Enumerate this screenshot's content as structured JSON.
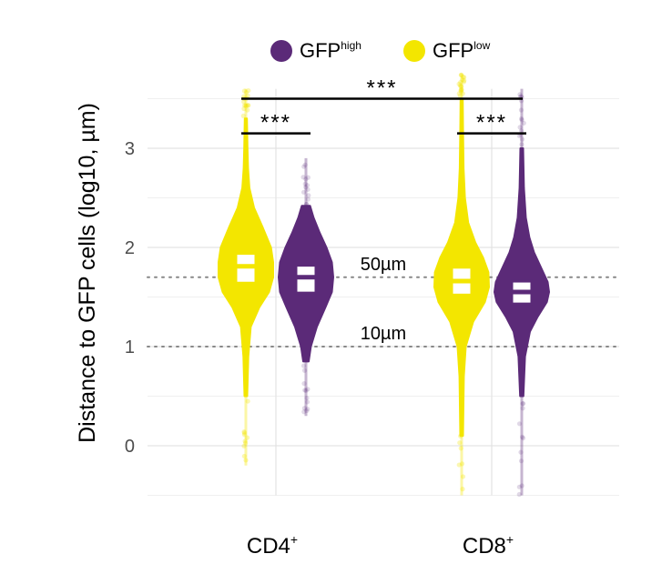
{
  "chart_data": {
    "type": "violin",
    "ylabel": "Distance to GFP cells (log10, µm)",
    "ylim": [
      -0.5,
      3.6
    ],
    "yticks": [
      "0",
      "1",
      "2",
      "3"
    ],
    "grid": true,
    "categories": [
      "CD4",
      "CD8"
    ],
    "category_superscripts": [
      "+",
      "+"
    ],
    "legend": {
      "placement": "top",
      "entries": [
        {
          "base": "GFP",
          "sup": "high",
          "color": "#5b2a78"
        },
        {
          "base": "GFP",
          "sup": "low",
          "color": "#f3e600"
        }
      ]
    },
    "reference_lines": [
      {
        "y": 1.699,
        "label": "50µm"
      },
      {
        "y": 1.0,
        "label": "10µm"
      }
    ],
    "series": [
      {
        "key": "low",
        "color": "#f3e600",
        "groups": [
          {
            "category": "CD4",
            "min": -0.2,
            "max": 3.6,
            "q1": 1.64,
            "median": 1.81,
            "q3": 1.94,
            "profile": [
              [
                0.5,
                0.05
              ],
              [
                0.9,
                0.09
              ],
              [
                1.2,
                0.18
              ],
              [
                1.4,
                0.5
              ],
              [
                1.55,
                0.85
              ],
              [
                1.7,
                1.0
              ],
              [
                1.85,
                1.0
              ],
              [
                2.0,
                0.92
              ],
              [
                2.2,
                0.62
              ],
              [
                2.4,
                0.3
              ],
              [
                2.6,
                0.13
              ],
              [
                2.8,
                0.08
              ],
              [
                3.0,
                0.06
              ],
              [
                3.3,
                0.04
              ]
            ]
          },
          {
            "category": "CD8",
            "min": -0.5,
            "max": 3.75,
            "q1": 1.52,
            "median": 1.66,
            "q3": 1.8,
            "profile": [
              [
                0.1,
                0.05
              ],
              [
                0.7,
                0.08
              ],
              [
                1.0,
                0.15
              ],
              [
                1.25,
                0.42
              ],
              [
                1.45,
                0.85
              ],
              [
                1.6,
                1.0
              ],
              [
                1.75,
                0.98
              ],
              [
                1.9,
                0.78
              ],
              [
                2.05,
                0.5
              ],
              [
                2.25,
                0.24
              ],
              [
                2.5,
                0.12
              ],
              [
                2.8,
                0.07
              ],
              [
                3.2,
                0.05
              ],
              [
                3.5,
                0.04
              ]
            ]
          }
        ]
      },
      {
        "key": "high",
        "color": "#5b2a78",
        "groups": [
          {
            "category": "CD4",
            "min": 0.3,
            "max": 2.9,
            "q1": 1.54,
            "median": 1.7,
            "q3": 1.82,
            "profile": [
              [
                0.85,
                0.1
              ],
              [
                1.0,
                0.18
              ],
              [
                1.2,
                0.4
              ],
              [
                1.4,
                0.72
              ],
              [
                1.55,
                0.95
              ],
              [
                1.7,
                1.0
              ],
              [
                1.85,
                0.95
              ],
              [
                2.0,
                0.75
              ],
              [
                2.15,
                0.5
              ],
              [
                2.3,
                0.28
              ],
              [
                2.42,
                0.15
              ]
            ]
          },
          {
            "category": "CD8",
            "min": -0.5,
            "max": 3.6,
            "q1": 1.43,
            "median": 1.55,
            "q3": 1.66,
            "profile": [
              [
                0.5,
                0.06
              ],
              [
                0.9,
                0.12
              ],
              [
                1.15,
                0.3
              ],
              [
                1.3,
                0.58
              ],
              [
                1.45,
                0.92
              ],
              [
                1.55,
                1.0
              ],
              [
                1.65,
                0.95
              ],
              [
                1.8,
                0.7
              ],
              [
                1.95,
                0.45
              ],
              [
                2.1,
                0.28
              ],
              [
                2.3,
                0.15
              ],
              [
                2.6,
                0.08
              ],
              [
                3.0,
                0.05
              ]
            ]
          }
        ]
      }
    ],
    "significance": [
      {
        "label": "***",
        "y": 3.15,
        "from": "CD4 low",
        "to": "CD4 high"
      },
      {
        "label": "***",
        "y": 3.15,
        "from": "CD8 low",
        "to": "CD8 high"
      },
      {
        "label": "***",
        "y": 3.5,
        "from": "CD4 low",
        "to": "CD8 high"
      }
    ]
  }
}
